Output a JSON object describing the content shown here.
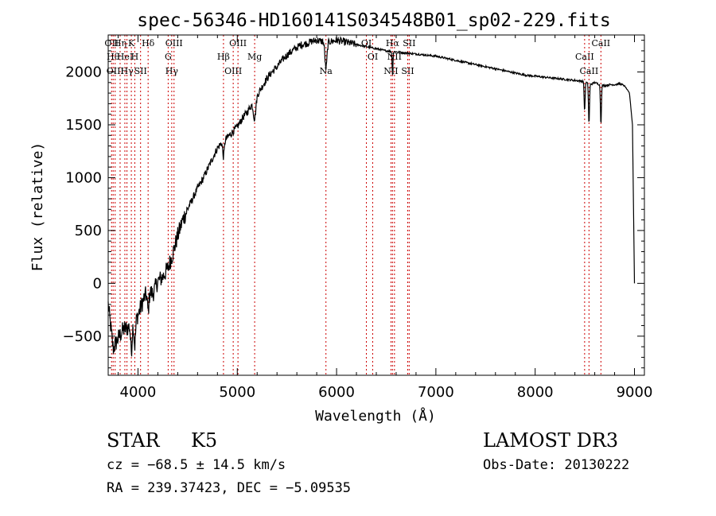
{
  "chart_data": {
    "type": "line",
    "title": "spec-56346-HD160141S034548B01_sp02-229.fits",
    "xlabel": "Wavelength (Å)",
    "ylabel": "Flux (relative)",
    "xlim": [
      3700,
      9100
    ],
    "ylim": [
      -870,
      2350
    ],
    "x_ticks": [
      {
        "value": 4000,
        "label": "4000"
      },
      {
        "value": 5000,
        "label": "5000"
      },
      {
        "value": 6000,
        "label": "6000"
      },
      {
        "value": 7000,
        "label": "7000"
      },
      {
        "value": 8000,
        "label": "8000"
      },
      {
        "value": 9000,
        "label": "9000"
      }
    ],
    "y_ticks": [
      {
        "value": -500,
        "label": "−500"
      },
      {
        "value": 0,
        "label": "0"
      },
      {
        "value": 500,
        "label": "500"
      },
      {
        "value": 1000,
        "label": "1000"
      },
      {
        "value": 1500,
        "label": "1500"
      },
      {
        "value": 2000,
        "label": "2000"
      }
    ],
    "series": [
      {
        "name": "spectrum",
        "color": "#000000",
        "x": [
          3700,
          3750,
          3800,
          3850,
          3900,
          3950,
          4000,
          4050,
          4100,
          4150,
          4200,
          4250,
          4300,
          4350,
          4400,
          4450,
          4500,
          4550,
          4600,
          4650,
          4700,
          4750,
          4800,
          4850,
          4900,
          4950,
          5000,
          5050,
          5100,
          5150,
          5200,
          5250,
          5300,
          5350,
          5400,
          5450,
          5500,
          5550,
          5600,
          5650,
          5700,
          5750,
          5800,
          5850,
          5900,
          5950,
          6000,
          6100,
          6200,
          6300,
          6400,
          6500,
          6600,
          6700,
          6800,
          6900,
          7000,
          7100,
          7200,
          7300,
          7400,
          7500,
          7600,
          7700,
          7800,
          7900,
          8000,
          8100,
          8200,
          8300,
          8400,
          8500,
          8550,
          8600,
          8650,
          8700,
          8750,
          8800,
          8850,
          8900,
          8950,
          8980,
          9000
        ],
        "y": [
          -200,
          -620,
          -520,
          -440,
          -420,
          -360,
          -300,
          -170,
          -60,
          -100,
          20,
          60,
          140,
          280,
          450,
          600,
          700,
          800,
          900,
          980,
          1080,
          1180,
          1280,
          1340,
          1380,
          1430,
          1480,
          1560,
          1620,
          1700,
          1780,
          1860,
          1940,
          2000,
          2050,
          2110,
          2160,
          2200,
          2230,
          2260,
          2270,
          2290,
          2300,
          2290,
          2280,
          2290,
          2300,
          2280,
          2260,
          2240,
          2220,
          2200,
          2190,
          2180,
          2170,
          2160,
          2150,
          2130,
          2110,
          2090,
          2070,
          2050,
          2030,
          2010,
          1990,
          1970,
          1960,
          1950,
          1940,
          1930,
          1920,
          1910,
          1880,
          1900,
          1880,
          1870,
          1880,
          1880,
          1890,
          1870,
          1800,
          1500,
          0
        ]
      }
    ],
    "lines": [
      {
        "x": 3734,
        "label": "OII"
      },
      {
        "x": 3750,
        "label": "Hθ"
      },
      {
        "x": 3770,
        "label": "OIII"
      },
      {
        "x": 3820,
        "label": "Hη"
      },
      {
        "x": 3868,
        "label": "HeI"
      },
      {
        "x": 3889,
        "label": "Hγ"
      },
      {
        "x": 3933,
        "label": "K"
      },
      {
        "x": 3968,
        "label": "H"
      },
      {
        "x": 4026,
        "label": "SII"
      },
      {
        "x": 4102,
        "label": "Hδ"
      },
      {
        "x": 4304,
        "label": "G"
      },
      {
        "x": 4340,
        "label": "Hγ"
      },
      {
        "x": 4363,
        "label": "OIII"
      },
      {
        "x": 4861,
        "label": "Hβ"
      },
      {
        "x": 4959,
        "label": "OIII"
      },
      {
        "x": 5007,
        "label": "OIII"
      },
      {
        "x": 5175,
        "label": "Mg"
      },
      {
        "x": 5893,
        "label": "Na"
      },
      {
        "x": 6300,
        "label": "OI"
      },
      {
        "x": 6364,
        "label": "OI"
      },
      {
        "x": 6548,
        "label": "NII"
      },
      {
        "x": 6563,
        "label": "Hα"
      },
      {
        "x": 6583,
        "label": "NII"
      },
      {
        "x": 6716,
        "label": "SII"
      },
      {
        "x": 6731,
        "label": "SII"
      },
      {
        "x": 8498,
        "label": "CaII"
      },
      {
        "x": 8542,
        "label": "CaII"
      },
      {
        "x": 8662,
        "label": "CaII"
      }
    ]
  },
  "info": {
    "object_class": "STAR",
    "subclass": "K5",
    "survey": "LAMOST DR3",
    "cz": "cz = −68.5 ± 14.5 km/s",
    "obs_date": "Obs-Date: 20130222",
    "coords": "RA = 239.37423, DEC =  −5.09535"
  }
}
